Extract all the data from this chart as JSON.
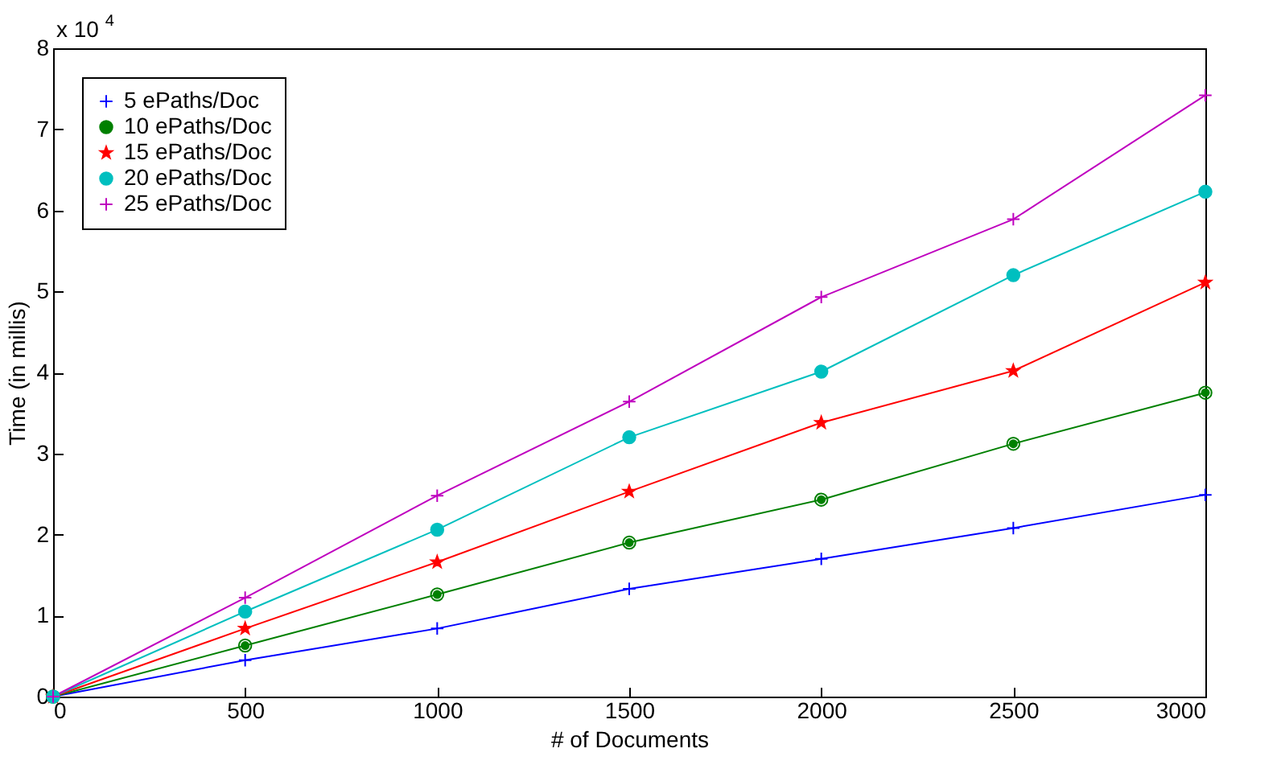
{
  "chart_data": {
    "type": "line",
    "xlabel": "# of Documents",
    "ylabel": "Time (in millis)",
    "annotations": [
      "x 10$^{4}$"
    ],
    "x": [
      0,
      500,
      1000,
      1500,
      2000,
      2500,
      3000
    ],
    "series": [
      {
        "name": "5 ePaths/Doc",
        "color": "#0000ff",
        "marker": "cross",
        "values": [
          0,
          0.45,
          0.84,
          1.33,
          1.7,
          2.08,
          2.49
        ]
      },
      {
        "name": "10 ePaths/Doc",
        "color": "#008000",
        "marker": "circle",
        "values": [
          0,
          0.63,
          1.26,
          1.9,
          2.43,
          3.12,
          3.75
        ]
      },
      {
        "name": "15 ePaths/Doc",
        "color": "#ff0000",
        "marker": "star",
        "values": [
          0,
          0.84,
          1.66,
          2.53,
          3.38,
          4.02,
          5.11
        ]
      },
      {
        "name": "20 ePaths/Doc",
        "color": "#00bfbf",
        "marker": "circle",
        "values": [
          0,
          1.05,
          2.06,
          3.2,
          4.01,
          5.2,
          6.23
        ]
      },
      {
        "name": "25 ePaths/Doc",
        "color": "#bf00bf",
        "marker": "cross",
        "values": [
          0,
          1.22,
          2.48,
          3.64,
          4.93,
          5.89,
          7.42
        ]
      }
    ],
    "xlim": [
      0,
      3000
    ],
    "xticks": [
      0,
      500,
      1000,
      1500,
      2000,
      2500,
      3000
    ],
    "ylim": [
      0,
      8
    ],
    "yticks": [
      0,
      1,
      2,
      3,
      4,
      5,
      6,
      7,
      8
    ],
    "grid": false,
    "legend": "top left",
    "line_style": "solid"
  }
}
